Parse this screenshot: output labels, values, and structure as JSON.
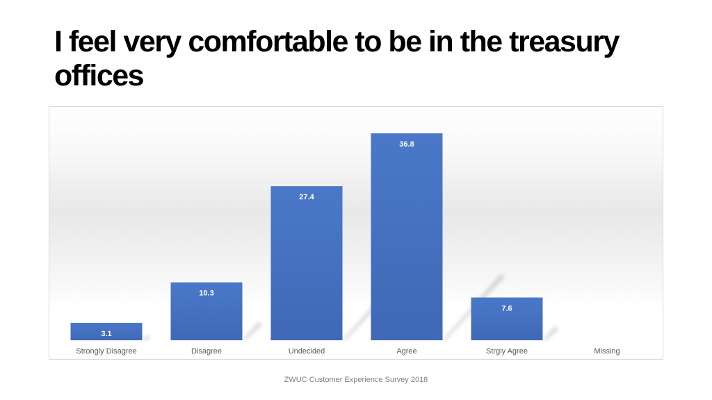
{
  "slide": {
    "title": "I feel very comfortable to be in the treasury offices",
    "footer": "ZWUC Customer Experience Survey 2018"
  },
  "chart_data": {
    "type": "bar",
    "categories": [
      "Strongly Disagree",
      "Disagree",
      "Undecided",
      "Agree",
      "Strgly Agree",
      "Missing"
    ],
    "values": [
      3.1,
      10.3,
      27.4,
      36.8,
      7.6,
      null
    ],
    "value_labels": [
      "3.1",
      "10.3",
      "27.4",
      "36.8",
      "7.6",
      ""
    ],
    "ylim": [
      0,
      40
    ],
    "grid": false,
    "legend": "none",
    "colors": {
      "bar": "#4472c4",
      "label": "#ffffff",
      "axis_text": "#595959"
    }
  }
}
